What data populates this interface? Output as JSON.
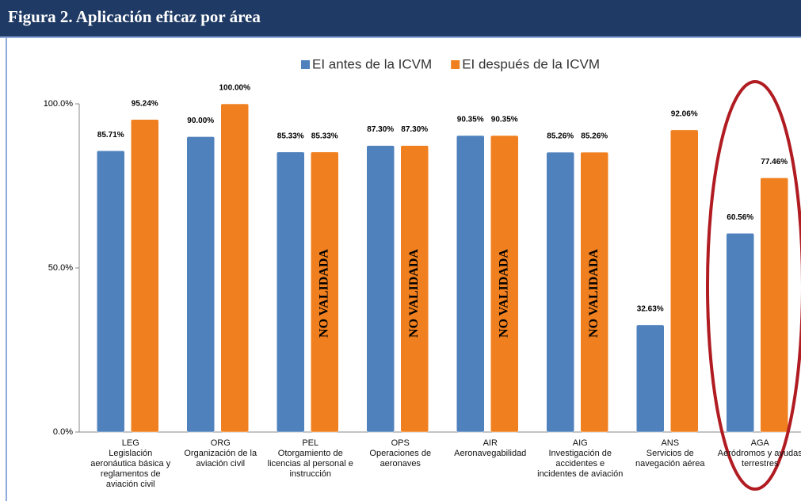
{
  "header": {
    "title": "Figura 2. Aplicación eficaz por área"
  },
  "chart_data": {
    "type": "bar",
    "categories": [
      "LEG",
      "ORG",
      "PEL",
      "OPS",
      "AIR",
      "AIG",
      "ANS",
      "AGA"
    ],
    "category_names": [
      "Legislación aeronáutica básica y reglamentos de aviación civil",
      "Organización de la aviación civil",
      "Otorgamiento de licencias al personal e instrucción",
      "Operaciones de aeronaves",
      "Aeronavegabilidad",
      "Investigación de accidentes e incidentes de aviación",
      "Servicios de navegación aérea",
      "Aeródromos y ayudas terrestres"
    ],
    "series": [
      {
        "name": "EI antes de la ICVM",
        "color": "#4f81bd",
        "values": [
          85.71,
          90,
          85.33,
          87.3,
          90.35,
          85.26,
          32.63,
          60.56
        ],
        "value_labels": [
          "85.71%",
          "90.00%",
          "85.33%",
          "87.30%",
          "90.35%",
          "85.26%",
          "32.63%",
          "60.56%"
        ]
      },
      {
        "name": "EI después de la ICVM",
        "color": "#f0801f",
        "values": [
          95.24,
          100,
          85.33,
          87.3,
          90.35,
          85.26,
          92.06,
          77.46
        ],
        "value_labels": [
          "95.24%",
          "100.00%",
          "85.33%",
          "87.30%",
          "90.35%",
          "85.26%",
          "92.06%",
          "77.46%"
        ]
      }
    ],
    "ylim": [
      0,
      100
    ],
    "yticks": [
      {
        "value": 0,
        "label": "0.0%"
      },
      {
        "value": 50,
        "label": "50.0%"
      },
      {
        "value": 100,
        "label": "100.0%"
      }
    ],
    "grid": false,
    "legend": "top",
    "annotations": [
      {
        "text": "NO VALIDADA",
        "category": "PEL"
      },
      {
        "text": "NO VALIDADA",
        "category": "OPS"
      },
      {
        "text": "NO VALIDADA",
        "category": "AIR"
      },
      {
        "text": "NO VALIDADA",
        "category": "AIG"
      }
    ]
  }
}
